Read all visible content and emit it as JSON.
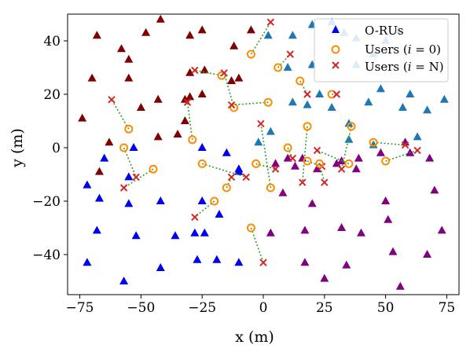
{
  "chart_data": {
    "type": "scatter",
    "xlabel": "x (m)",
    "ylabel": "y (m)",
    "xlim": [
      -80,
      80
    ],
    "ylim": [
      -55,
      50
    ],
    "xticks": [
      -75,
      -50,
      -25,
      0,
      25,
      50,
      75
    ],
    "yticks": [
      -40,
      -20,
      0,
      20,
      40
    ],
    "xtick_labels": [
      "−75",
      "−50",
      "−25",
      "0",
      "25",
      "50",
      "75"
    ],
    "ytick_labels": [
      "−40",
      "−20",
      "0",
      "20",
      "40"
    ],
    "grid": false,
    "legend_position": "top-right",
    "legend": [
      "O-RUs",
      "Users (i = 0)",
      "Users (i = N)"
    ],
    "colors": {
      "oru_blue": "#0000ee",
      "oru_darkred": "#800000",
      "oru_teal": "#1f77b4",
      "oru_purple": "#800080",
      "user_start": "#ff8c00",
      "user_end": "#d62728",
      "trajectory": "#2ca02c"
    },
    "orus": [
      {
        "group": "blue",
        "points": [
          [
            -72,
            -14
          ],
          [
            -67,
            -19
          ],
          [
            -65,
            -4
          ],
          [
            -72,
            -43
          ],
          [
            -68,
            -31
          ],
          [
            -55,
            -21
          ],
          [
            -55,
            -11
          ],
          [
            -53,
            0
          ],
          [
            -52,
            -33
          ],
          [
            -57,
            -50
          ],
          [
            -42,
            -20
          ],
          [
            -42,
            -45
          ],
          [
            -36,
            -33
          ],
          [
            -28,
            -32
          ],
          [
            -25,
            -20
          ],
          [
            -24,
            -32
          ],
          [
            -18,
            -25
          ],
          [
            -27,
            -42
          ],
          [
            -19,
            -42
          ],
          [
            -10,
            -43
          ],
          [
            -10,
            -9
          ],
          [
            -15,
            -2
          ],
          [
            -25,
            0
          ],
          [
            -10,
            -8
          ]
        ]
      },
      {
        "group": "darkred",
        "points": [
          [
            -68,
            42
          ],
          [
            -58,
            37
          ],
          [
            -55,
            33
          ],
          [
            -48,
            43
          ],
          [
            -42,
            48
          ],
          [
            -30,
            42
          ],
          [
            -25,
            44
          ],
          [
            -30,
            28
          ],
          [
            -24,
            29
          ],
          [
            -25,
            20
          ],
          [
            -32,
            10
          ],
          [
            -30,
            19
          ],
          [
            -32,
            18
          ],
          [
            -35,
            5
          ],
          [
            -43,
            4
          ],
          [
            -43,
            18
          ],
          [
            -50,
            15
          ],
          [
            -55,
            26
          ],
          [
            -63,
            2
          ],
          [
            -67,
            -9
          ],
          [
            -70,
            26
          ],
          [
            -74,
            11
          ],
          [
            -10,
            26
          ],
          [
            -12,
            38
          ],
          [
            -5,
            44
          ],
          [
            -13,
            25
          ]
        ]
      },
      {
        "group": "teal",
        "points": [
          [
            2,
            42
          ],
          [
            12,
            42
          ],
          [
            20,
            46
          ],
          [
            28,
            47
          ],
          [
            33,
            43
          ],
          [
            38,
            41
          ],
          [
            45,
            35
          ],
          [
            50,
            40
          ],
          [
            55,
            44
          ],
          [
            43,
            17
          ],
          [
            48,
            22
          ],
          [
            57,
            15
          ],
          [
            60,
            20
          ],
          [
            74,
            18
          ],
          [
            67,
            14
          ],
          [
            63,
            4
          ],
          [
            35,
            9
          ],
          [
            28,
            15
          ],
          [
            23,
            20
          ],
          [
            18,
            16
          ],
          [
            12,
            17
          ],
          [
            10,
            30
          ],
          [
            20,
            31
          ],
          [
            38,
            31
          ],
          [
            45,
            1
          ],
          [
            35,
            3
          ],
          [
            3,
            6
          ],
          [
            -2,
            2
          ]
        ]
      },
      {
        "group": "purple",
        "points": [
          [
            5,
            -6
          ],
          [
            10,
            -4
          ],
          [
            16,
            -4
          ],
          [
            22,
            -8
          ],
          [
            30,
            -6
          ],
          [
            38,
            -8
          ],
          [
            32,
            -5
          ],
          [
            13,
            -7
          ],
          [
            8,
            -17
          ],
          [
            3,
            -32
          ],
          [
            17,
            -31
          ],
          [
            20,
            -21
          ],
          [
            32,
            -30
          ],
          [
            40,
            -32
          ],
          [
            50,
            -20
          ],
          [
            53,
            -39
          ],
          [
            51,
            -27
          ],
          [
            48,
            -2
          ],
          [
            58,
            2
          ],
          [
            60,
            -2
          ],
          [
            68,
            -4
          ],
          [
            70,
            -16
          ],
          [
            73,
            -31
          ],
          [
            67,
            -40
          ],
          [
            56,
            -52
          ],
          [
            34,
            -44
          ],
          [
            25,
            -49
          ],
          [
            17,
            -43
          ],
          [
            39,
            -4
          ]
        ]
      }
    ],
    "users": [
      {
        "start": [
          -55,
          7
        ],
        "end": [
          -62,
          18
        ]
      },
      {
        "start": [
          -57,
          0
        ],
        "end": [
          -52,
          -11
        ]
      },
      {
        "start": [
          -45,
          -8
        ],
        "end": [
          -57,
          -15
        ]
      },
      {
        "start": [
          -29,
          3
        ],
        "end": [
          -31,
          17
        ]
      },
      {
        "start": [
          -25,
          -6
        ],
        "end": [
          -7,
          -11
        ]
      },
      {
        "start": [
          -20,
          -20
        ],
        "end": [
          -28,
          -26
        ]
      },
      {
        "start": [
          -17,
          27
        ],
        "end": [
          -28,
          29
        ]
      },
      {
        "start": [
          -12,
          15
        ],
        "end": [
          -16,
          28
        ]
      },
      {
        "start": [
          -5,
          35
        ],
        "end": [
          3,
          47
        ]
      },
      {
        "start": [
          2,
          17
        ],
        "end": [
          -13,
          16
        ]
      },
      {
        "start": [
          -15,
          -15
        ],
        "end": [
          -13,
          -11
        ]
      },
      {
        "start": [
          -5,
          -30
        ],
        "end": [
          0,
          -43
        ]
      },
      {
        "start": [
          -3,
          -6
        ],
        "end": [
          5,
          -8
        ]
      },
      {
        "start": [
          3,
          -15
        ],
        "end": [
          -1,
          9
        ]
      },
      {
        "start": [
          6,
          30
        ],
        "end": [
          11,
          35
        ]
      },
      {
        "start": [
          15,
          25
        ],
        "end": [
          18,
          20
        ]
      },
      {
        "start": [
          18,
          8
        ],
        "end": [
          16,
          -13
        ]
      },
      {
        "start": [
          10,
          0
        ],
        "end": [
          12,
          -4
        ]
      },
      {
        "start": [
          18,
          -5
        ],
        "end": [
          24,
          -7
        ]
      },
      {
        "start": [
          23,
          -6
        ],
        "end": [
          25,
          -13
        ]
      },
      {
        "start": [
          35,
          -6
        ],
        "end": [
          22,
          -1
        ]
      },
      {
        "start": [
          28,
          20
        ],
        "end": [
          30,
          20
        ]
      },
      {
        "start": [
          36,
          8
        ],
        "end": [
          32,
          -8
        ]
      },
      {
        "start": [
          45,
          2
        ],
        "end": [
          58,
          1
        ]
      },
      {
        "start": [
          50,
          -5
        ],
        "end": [
          63,
          -1
        ]
      }
    ]
  }
}
